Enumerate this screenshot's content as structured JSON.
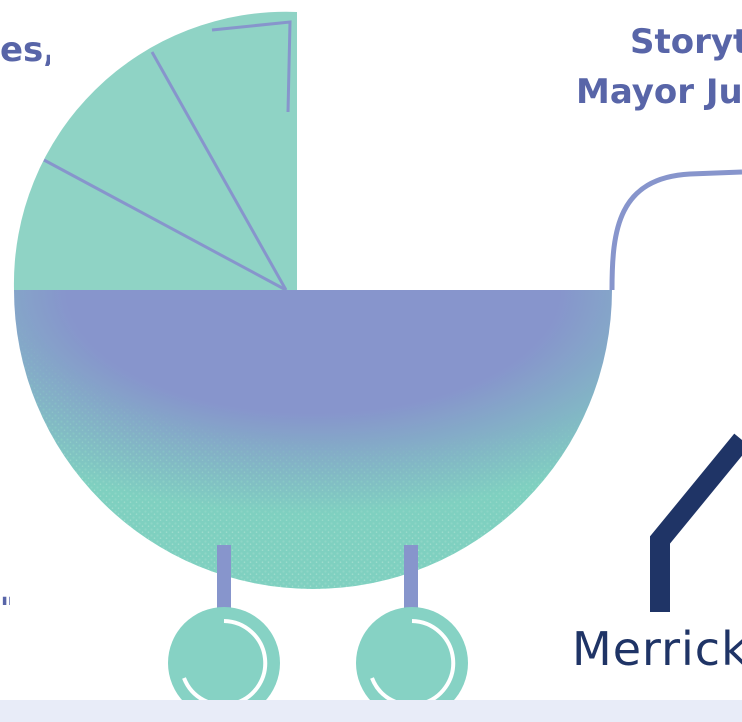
{
  "texts": {
    "left_fragment": "es,",
    "storytime_fragment": "Storyti",
    "mayor_fragment": "Mayor Jus",
    "merrick_fragment": "Merrick",
    "left_bottom_fragment": "\""
  },
  "colors": {
    "canopy": "#8fd3c5",
    "basket": "#8795cc",
    "speckle": "#7fd0c0",
    "handle": "#8795cc",
    "wheel": "#86d2c4",
    "axle": "#8795cc",
    "navy_shape": "#1f3466",
    "text_primary": "#5865a8",
    "band": "#e8ecf8"
  },
  "icons": [
    "baby-stroller-icon"
  ]
}
